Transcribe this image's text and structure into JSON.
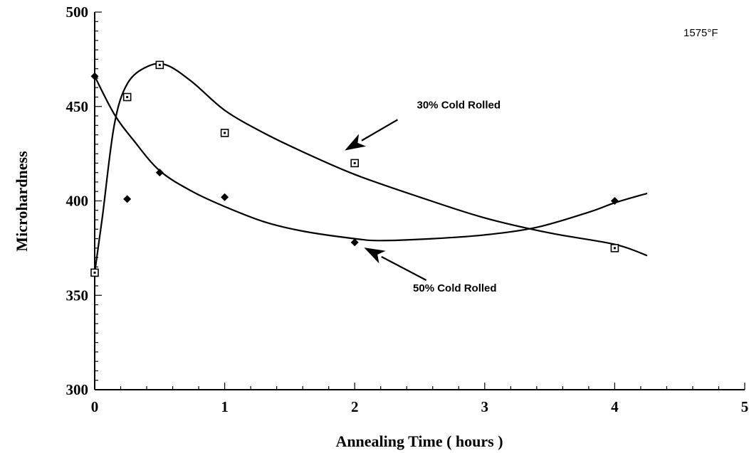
{
  "chart_data": {
    "type": "scatter",
    "title": "",
    "xlabel": "Annealing Time ( hours )",
    "ylabel": "Microhardness",
    "xlim": [
      0,
      5
    ],
    "ylim": [
      300,
      500
    ],
    "x_ticks": [
      "0",
      "1",
      "2",
      "3",
      "4",
      "5"
    ],
    "y_ticks": [
      "300",
      "350",
      "400",
      "450",
      "500"
    ],
    "grid": false,
    "legend": "none",
    "condition_label": "1575°F",
    "series": [
      {
        "name": "30% Cold Rolled",
        "marker": "square",
        "points": [
          [
            0,
            362
          ],
          [
            0.25,
            455
          ],
          [
            0.5,
            472
          ],
          [
            1,
            436
          ],
          [
            2,
            420
          ],
          [
            4,
            375
          ]
        ],
        "curve": [
          [
            0,
            362
          ],
          [
            0.06,
            392
          ],
          [
            0.15,
            440
          ],
          [
            0.25,
            462
          ],
          [
            0.4,
            471
          ],
          [
            0.55,
            472
          ],
          [
            0.75,
            463
          ],
          [
            1,
            448
          ],
          [
            1.3,
            436
          ],
          [
            1.6,
            426
          ],
          [
            2,
            414
          ],
          [
            2.5,
            402
          ],
          [
            3,
            391
          ],
          [
            3.5,
            383
          ],
          [
            4,
            377
          ],
          [
            4.25,
            371
          ]
        ]
      },
      {
        "name": "50% Cold Rolled",
        "marker": "diamond",
        "points": [
          [
            0,
            466
          ],
          [
            0.25,
            401
          ],
          [
            0.5,
            415
          ],
          [
            1,
            402
          ],
          [
            2,
            378
          ],
          [
            4,
            400
          ]
        ],
        "curve": [
          [
            0,
            466
          ],
          [
            0.15,
            446
          ],
          [
            0.3,
            432
          ],
          [
            0.5,
            416
          ],
          [
            0.75,
            405
          ],
          [
            1,
            397
          ],
          [
            1.3,
            389
          ],
          [
            1.6,
            384
          ],
          [
            2,
            380
          ],
          [
            2.2,
            379
          ],
          [
            2.6,
            380
          ],
          [
            3,
            382
          ],
          [
            3.4,
            386
          ],
          [
            3.8,
            394
          ],
          [
            4,
            399
          ],
          [
            4.25,
            404
          ]
        ]
      }
    ],
    "annotations": [
      {
        "text": "30% Cold Rolled",
        "tx": 2.8,
        "ty": 449,
        "ax": 1.93,
        "ay": 427,
        "sx": 2.33,
        "sy": 443
      },
      {
        "text": "50% Cold Rolled",
        "tx": 2.77,
        "ty": 352,
        "ax": 2.08,
        "ay": 375,
        "sx": 2.55,
        "sy": 358
      }
    ]
  }
}
